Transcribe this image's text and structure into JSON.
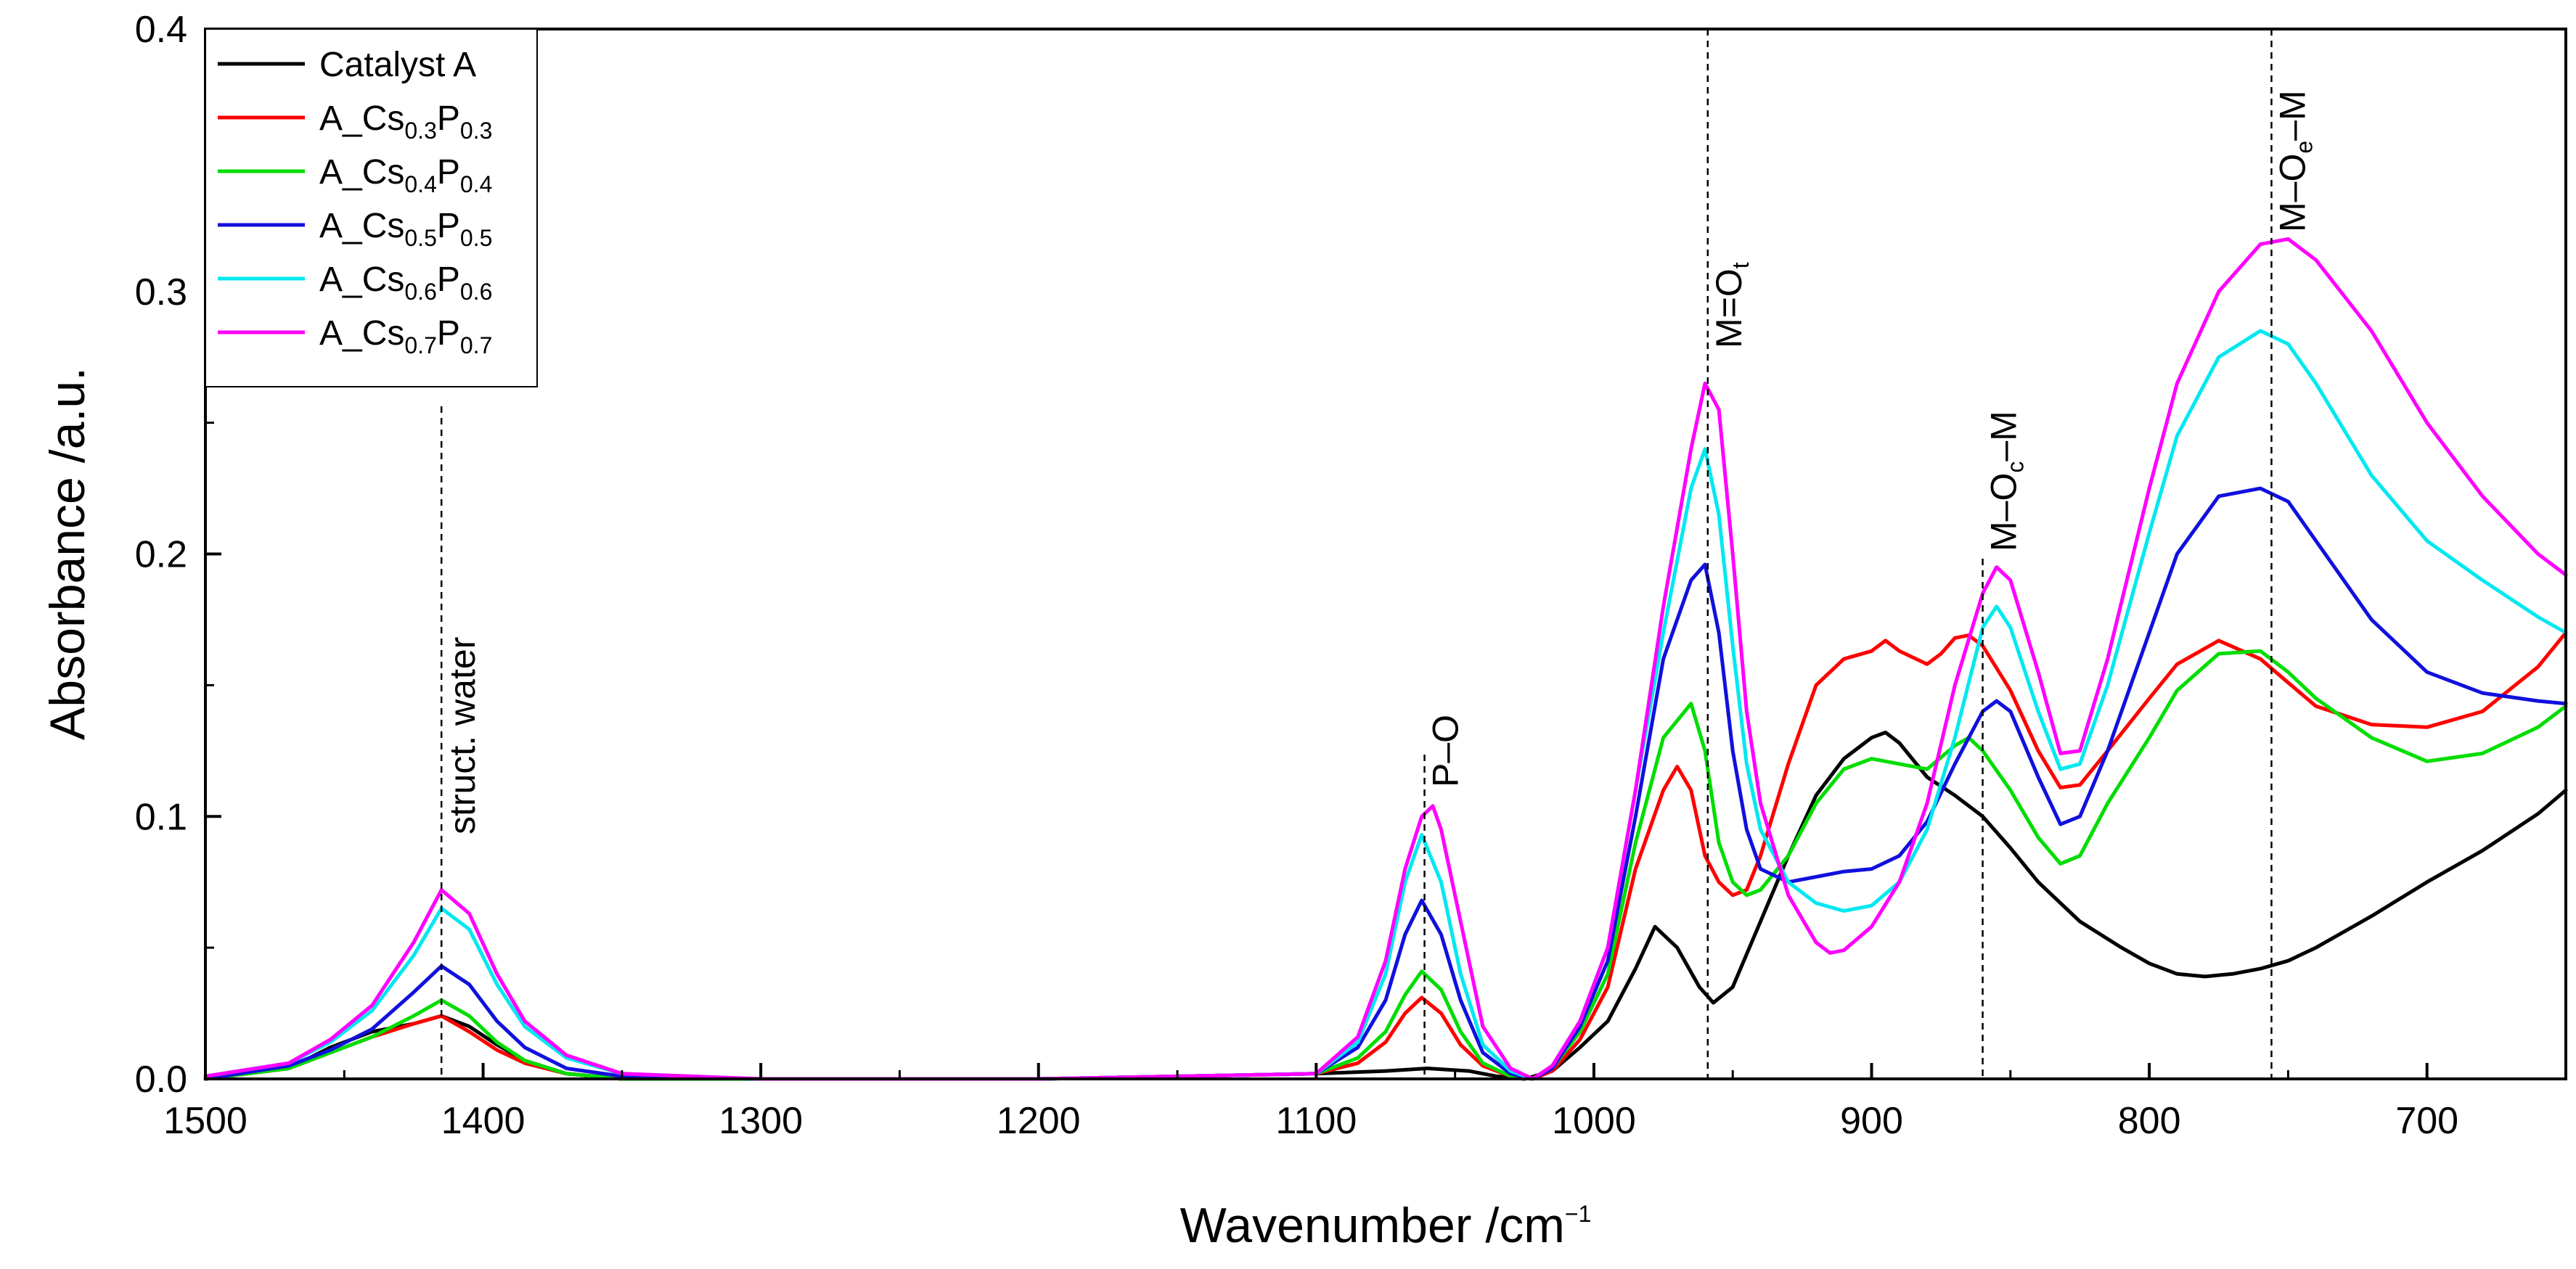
{
  "chart_data": {
    "type": "line",
    "title": "",
    "xlabel": "Wavenumber /cm",
    "xlabel_superscript": "−1",
    "ylabel": "Absorbance /a.u.",
    "xlim": [
      1500,
      650
    ],
    "ylim": [
      0,
      0.4
    ],
    "x_reversed": true,
    "xticks": [
      1500,
      1400,
      1300,
      1200,
      1100,
      1000,
      900,
      800,
      700
    ],
    "xtick_labels": [
      "1500",
      "1400",
      "1300",
      "1200",
      "1100",
      "1000",
      "900",
      "800",
      "700"
    ],
    "yticks": [
      0,
      0.1,
      0.2,
      0.3,
      0.4
    ],
    "ytick_labels": [
      "0.0",
      "0.1",
      "0.2",
      "0.3",
      "0.4"
    ],
    "legend_position": "top-left",
    "series": [
      {
        "name": "Catalyst A",
        "name_parts": [
          "Catalyst A"
        ],
        "color": "#000000",
        "x": [
          1500,
          1470,
          1455,
          1440,
          1425,
          1415,
          1405,
          1395,
          1385,
          1370,
          1350,
          1300,
          1200,
          1100,
          1075,
          1060,
          1045,
          1035,
          1025,
          1015,
          1005,
          995,
          985,
          978,
          970,
          962,
          957,
          950,
          940,
          930,
          920,
          910,
          900,
          895,
          890,
          880,
          870,
          860,
          850,
          840,
          825,
          810,
          800,
          790,
          780,
          770,
          760,
          750,
          740,
          720,
          700,
          680,
          660,
          650
        ],
        "values": [
          0,
          0.004,
          0.012,
          0.018,
          0.021,
          0.024,
          0.02,
          0.013,
          0.007,
          0.002,
          0,
          0,
          0,
          0.002,
          0.003,
          0.004,
          0.003,
          0.001,
          0,
          0.003,
          0.012,
          0.022,
          0.042,
          0.058,
          0.05,
          0.035,
          0.029,
          0.035,
          0.06,
          0.085,
          0.108,
          0.122,
          0.13,
          0.132,
          0.128,
          0.115,
          0.108,
          0.1,
          0.088,
          0.075,
          0.06,
          0.05,
          0.044,
          0.04,
          0.039,
          0.04,
          0.042,
          0.045,
          0.05,
          0.062,
          0.075,
          0.087,
          0.101,
          0.11
        ]
      },
      {
        "name": "A_Cs0.3P0.3",
        "name_parts": [
          "A_Cs",
          "0.3",
          "P",
          "0.3"
        ],
        "color": "#ff0000",
        "x": [
          1500,
          1470,
          1455,
          1440,
          1425,
          1415,
          1405,
          1395,
          1385,
          1370,
          1350,
          1300,
          1200,
          1100,
          1085,
          1075,
          1068,
          1062,
          1055,
          1048,
          1040,
          1030,
          1022,
          1015,
          1005,
          995,
          985,
          975,
          970,
          965,
          960,
          955,
          950,
          945,
          940,
          930,
          920,
          910,
          900,
          895,
          890,
          880,
          875,
          870,
          865,
          860,
          850,
          840,
          832,
          825,
          815,
          800,
          790,
          775,
          760,
          750,
          740,
          720,
          700,
          680,
          660,
          650
        ],
        "values": [
          0,
          0.004,
          0.01,
          0.016,
          0.021,
          0.024,
          0.018,
          0.011,
          0.006,
          0.002,
          0,
          0,
          0,
          0.002,
          0.006,
          0.014,
          0.025,
          0.031,
          0.025,
          0.013,
          0.005,
          0.001,
          0,
          0.003,
          0.015,
          0.035,
          0.08,
          0.11,
          0.119,
          0.11,
          0.085,
          0.075,
          0.07,
          0.072,
          0.085,
          0.12,
          0.15,
          0.16,
          0.163,
          0.167,
          0.163,
          0.158,
          0.162,
          0.168,
          0.169,
          0.165,
          0.148,
          0.125,
          0.111,
          0.112,
          0.125,
          0.145,
          0.158,
          0.167,
          0.16,
          0.151,
          0.142,
          0.135,
          0.134,
          0.14,
          0.157,
          0.17
        ]
      },
      {
        "name": "A_Cs0.4P0.4",
        "name_parts": [
          "A_Cs",
          "0.4",
          "P",
          "0.4"
        ],
        "color": "#00dd00",
        "x": [
          1500,
          1470,
          1455,
          1440,
          1425,
          1415,
          1405,
          1395,
          1385,
          1370,
          1350,
          1300,
          1200,
          1100,
          1085,
          1075,
          1068,
          1062,
          1055,
          1048,
          1040,
          1030,
          1022,
          1015,
          1005,
          995,
          985,
          975,
          965,
          960,
          955,
          950,
          945,
          940,
          930,
          920,
          910,
          900,
          890,
          880,
          870,
          865,
          860,
          850,
          840,
          832,
          825,
          815,
          800,
          790,
          775,
          760,
          750,
          740,
          720,
          700,
          680,
          660,
          650
        ],
        "values": [
          0,
          0.004,
          0.01,
          0.016,
          0.024,
          0.03,
          0.024,
          0.014,
          0.007,
          0.002,
          0,
          0,
          0,
          0.002,
          0.008,
          0.018,
          0.032,
          0.041,
          0.034,
          0.018,
          0.006,
          0.001,
          0,
          0.004,
          0.018,
          0.04,
          0.09,
          0.13,
          0.143,
          0.125,
          0.09,
          0.075,
          0.07,
          0.072,
          0.085,
          0.105,
          0.118,
          0.122,
          0.12,
          0.118,
          0.127,
          0.13,
          0.125,
          0.11,
          0.092,
          0.082,
          0.085,
          0.105,
          0.13,
          0.148,
          0.162,
          0.163,
          0.155,
          0.145,
          0.13,
          0.121,
          0.124,
          0.134,
          0.142
        ]
      },
      {
        "name": "A_Cs0.5P0.5",
        "name_parts": [
          "A_Cs",
          "0.5",
          "P",
          "0.5"
        ],
        "color": "#1010dd",
        "x": [
          1500,
          1470,
          1455,
          1440,
          1425,
          1415,
          1405,
          1395,
          1385,
          1370,
          1350,
          1300,
          1200,
          1100,
          1085,
          1075,
          1068,
          1062,
          1055,
          1048,
          1040,
          1030,
          1022,
          1015,
          1005,
          995,
          985,
          975,
          965,
          960,
          955,
          950,
          945,
          940,
          930,
          920,
          910,
          900,
          890,
          880,
          870,
          860,
          855,
          850,
          840,
          832,
          825,
          815,
          800,
          790,
          775,
          760,
          750,
          740,
          720,
          700,
          680,
          660,
          650
        ],
        "values": [
          0,
          0.005,
          0.011,
          0.019,
          0.033,
          0.043,
          0.036,
          0.022,
          0.012,
          0.004,
          0.001,
          0,
          0,
          0.002,
          0.012,
          0.03,
          0.055,
          0.068,
          0.055,
          0.03,
          0.01,
          0.002,
          0,
          0.004,
          0.02,
          0.045,
          0.1,
          0.16,
          0.19,
          0.196,
          0.17,
          0.125,
          0.095,
          0.08,
          0.075,
          0.077,
          0.079,
          0.08,
          0.085,
          0.098,
          0.12,
          0.14,
          0.144,
          0.14,
          0.115,
          0.097,
          0.1,
          0.125,
          0.17,
          0.2,
          0.222,
          0.225,
          0.22,
          0.205,
          0.175,
          0.155,
          0.147,
          0.144,
          0.143
        ]
      },
      {
        "name": "A_Cs0.6P0.6",
        "name_parts": [
          "A_Cs",
          "0.6",
          "P",
          "0.6"
        ],
        "color": "#00e8f0",
        "x": [
          1500,
          1470,
          1455,
          1440,
          1425,
          1415,
          1405,
          1395,
          1385,
          1370,
          1350,
          1300,
          1200,
          1100,
          1085,
          1075,
          1068,
          1062,
          1055,
          1048,
          1040,
          1030,
          1022,
          1015,
          1005,
          995,
          985,
          975,
          965,
          960,
          955,
          950,
          945,
          940,
          930,
          920,
          910,
          900,
          890,
          880,
          870,
          860,
          855,
          850,
          840,
          832,
          825,
          815,
          800,
          790,
          775,
          760,
          750,
          740,
          720,
          700,
          680,
          660,
          650
        ],
        "values": [
          0.001,
          0.006,
          0.014,
          0.026,
          0.047,
          0.065,
          0.057,
          0.036,
          0.02,
          0.008,
          0.002,
          0,
          0,
          0.002,
          0.014,
          0.04,
          0.075,
          0.093,
          0.075,
          0.04,
          0.013,
          0.003,
          0,
          0.005,
          0.022,
          0.05,
          0.11,
          0.17,
          0.225,
          0.24,
          0.215,
          0.165,
          0.12,
          0.095,
          0.075,
          0.067,
          0.064,
          0.066,
          0.075,
          0.095,
          0.13,
          0.172,
          0.18,
          0.172,
          0.14,
          0.118,
          0.12,
          0.15,
          0.208,
          0.245,
          0.275,
          0.285,
          0.28,
          0.265,
          0.23,
          0.205,
          0.19,
          0.176,
          0.17
        ]
      },
      {
        "name": "A_Cs0.7P0.7",
        "name_parts": [
          "A_Cs",
          "0.7",
          "P",
          "0.7"
        ],
        "color": "#ff00ff",
        "x": [
          1500,
          1470,
          1455,
          1440,
          1425,
          1415,
          1405,
          1395,
          1385,
          1370,
          1350,
          1300,
          1200,
          1100,
          1085,
          1075,
          1068,
          1062,
          1058,
          1055,
          1048,
          1040,
          1030,
          1022,
          1015,
          1005,
          995,
          985,
          975,
          965,
          960,
          955,
          950,
          945,
          940,
          930,
          920,
          915,
          910,
          900,
          890,
          880,
          870,
          860,
          855,
          850,
          840,
          832,
          825,
          815,
          800,
          790,
          775,
          760,
          750,
          740,
          720,
          700,
          680,
          660,
          650
        ],
        "values": [
          0.001,
          0.006,
          0.015,
          0.028,
          0.052,
          0.072,
          0.063,
          0.04,
          0.022,
          0.009,
          0.002,
          0,
          0,
          0.002,
          0.016,
          0.045,
          0.08,
          0.1,
          0.104,
          0.095,
          0.06,
          0.02,
          0.004,
          0,
          0.005,
          0.022,
          0.05,
          0.11,
          0.18,
          0.24,
          0.265,
          0.255,
          0.2,
          0.14,
          0.105,
          0.07,
          0.052,
          0.048,
          0.049,
          0.058,
          0.075,
          0.105,
          0.15,
          0.185,
          0.195,
          0.19,
          0.155,
          0.124,
          0.125,
          0.16,
          0.225,
          0.265,
          0.3,
          0.318,
          0.32,
          0.312,
          0.285,
          0.25,
          0.222,
          0.2,
          0.192
        ]
      }
    ],
    "annotations": [
      {
        "x": 1415,
        "label": "struct. water",
        "label_parts": [
          "struct. water"
        ]
      },
      {
        "x": 1061,
        "label": "P–O",
        "label_parts": [
          "P–O"
        ]
      },
      {
        "x": 959,
        "label": "M=Ot",
        "label_parts": [
          "M=O",
          "t"
        ]
      },
      {
        "x": 860,
        "label": "M–Oc–M",
        "label_parts": [
          "M–O",
          "c",
          "–M"
        ]
      },
      {
        "x": 756,
        "label": "M–Oe–M",
        "label_parts": [
          "M–O",
          "e",
          "–M"
        ]
      }
    ]
  }
}
